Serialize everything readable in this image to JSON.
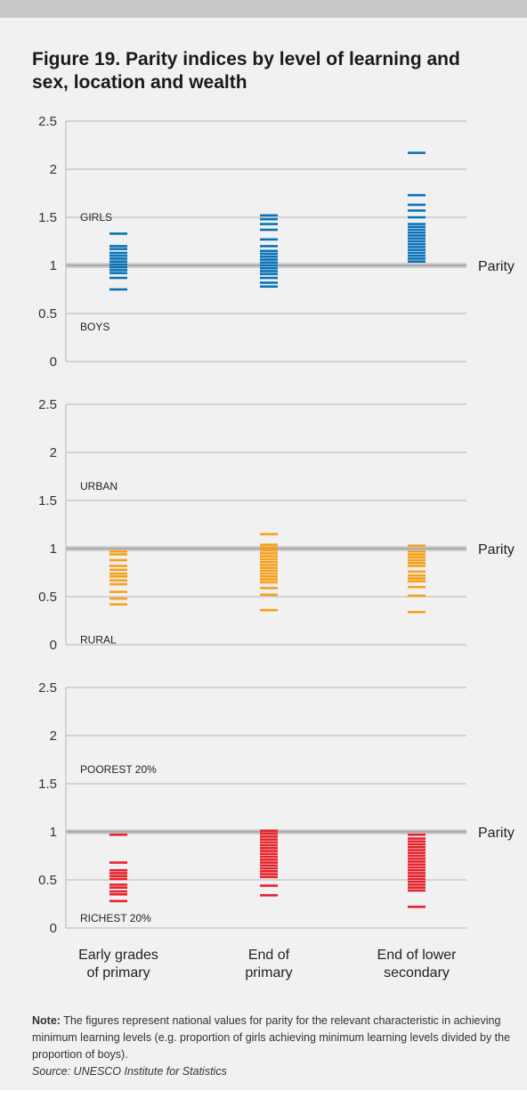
{
  "title": "Figure 19. Parity indices by level of learning and sex, location and wealth",
  "note": {
    "label": "Note:",
    "text": " The figures represent national values for parity for the relevant characteristic in achieving minimum learning levels (e.g. proportion of girls achieving minimum learning levels divided by the proportion of boys).",
    "source": "Source: UNESCO Institute for Statistics"
  },
  "colors": {
    "sex": "#0a72b8",
    "location": "#f5a11b",
    "wealth": "#e8212b",
    "parity_band": "#d0d0d2",
    "parity_line": "#9a9a9c",
    "grid": "#b5b5b7"
  },
  "chart_data": {
    "type": "scatter",
    "categories": [
      "Early grades\nof primary",
      "End of\nprimary",
      "End of lower\nsecondary"
    ],
    "ylim": [
      0,
      2.5
    ],
    "yticks": [
      "0",
      "0.5",
      "1",
      "1.5",
      "2",
      "2.5"
    ],
    "parity_label": "Parity",
    "parity_value": 1,
    "panels": [
      {
        "id": "sex",
        "top_label": "GIRLS",
        "top_label_value": 1.5,
        "bottom_label": "BOYS",
        "bottom_label_value": 0.36,
        "color_key": "sex",
        "columns": [
          [
            0.75,
            0.87,
            0.92,
            0.95,
            0.98,
            1.01,
            1.04,
            1.07,
            1.1,
            1.13,
            1.17,
            1.2,
            1.33
          ],
          [
            0.78,
            0.82,
            0.87,
            0.91,
            0.94,
            0.97,
            1.0,
            1.03,
            1.06,
            1.09,
            1.12,
            1.15,
            1.2,
            1.27,
            1.37,
            1.43,
            1.48,
            1.52
          ],
          [
            1.04,
            1.07,
            1.1,
            1.13,
            1.16,
            1.19,
            1.22,
            1.25,
            1.28,
            1.31,
            1.34,
            1.37,
            1.4,
            1.43,
            1.5,
            1.57,
            1.63,
            1.73,
            2.17
          ]
        ]
      },
      {
        "id": "location",
        "top_label": "URBAN",
        "top_label_value": 1.65,
        "bottom_label": "RURAL",
        "bottom_label_value": 0.05,
        "color_key": "location",
        "columns": [
          [
            0.42,
            0.48,
            0.55,
            0.63,
            0.67,
            0.71,
            0.74,
            0.78,
            0.82,
            0.88,
            0.94,
            0.97
          ],
          [
            0.36,
            0.52,
            0.59,
            0.65,
            0.68,
            0.71,
            0.74,
            0.77,
            0.8,
            0.83,
            0.86,
            0.89,
            0.92,
            0.95,
            0.98,
            1.01,
            1.04,
            1.15
          ],
          [
            0.34,
            0.51,
            0.6,
            0.66,
            0.69,
            0.72,
            0.76,
            0.82,
            0.85,
            0.88,
            0.91,
            0.94,
            0.97,
            1.03
          ]
        ]
      },
      {
        "id": "wealth",
        "top_label": "POOREST 20%",
        "top_label_value": 1.65,
        "bottom_label": "RICHEST  20%",
        "bottom_label_value": 0.1,
        "color_key": "wealth",
        "columns": [
          [
            0.28,
            0.35,
            0.38,
            0.42,
            0.45,
            0.51,
            0.54,
            0.57,
            0.6,
            0.68,
            0.97
          ],
          [
            0.34,
            0.44,
            0.53,
            0.56,
            0.59,
            0.62,
            0.65,
            0.68,
            0.71,
            0.74,
            0.77,
            0.8,
            0.83,
            0.86,
            0.89,
            0.92,
            0.95,
            0.98,
            1.01
          ],
          [
            0.22,
            0.39,
            0.42,
            0.45,
            0.48,
            0.51,
            0.54,
            0.57,
            0.6,
            0.63,
            0.66,
            0.69,
            0.72,
            0.75,
            0.78,
            0.81,
            0.84,
            0.87,
            0.9,
            0.93,
            0.97
          ]
        ]
      }
    ]
  }
}
